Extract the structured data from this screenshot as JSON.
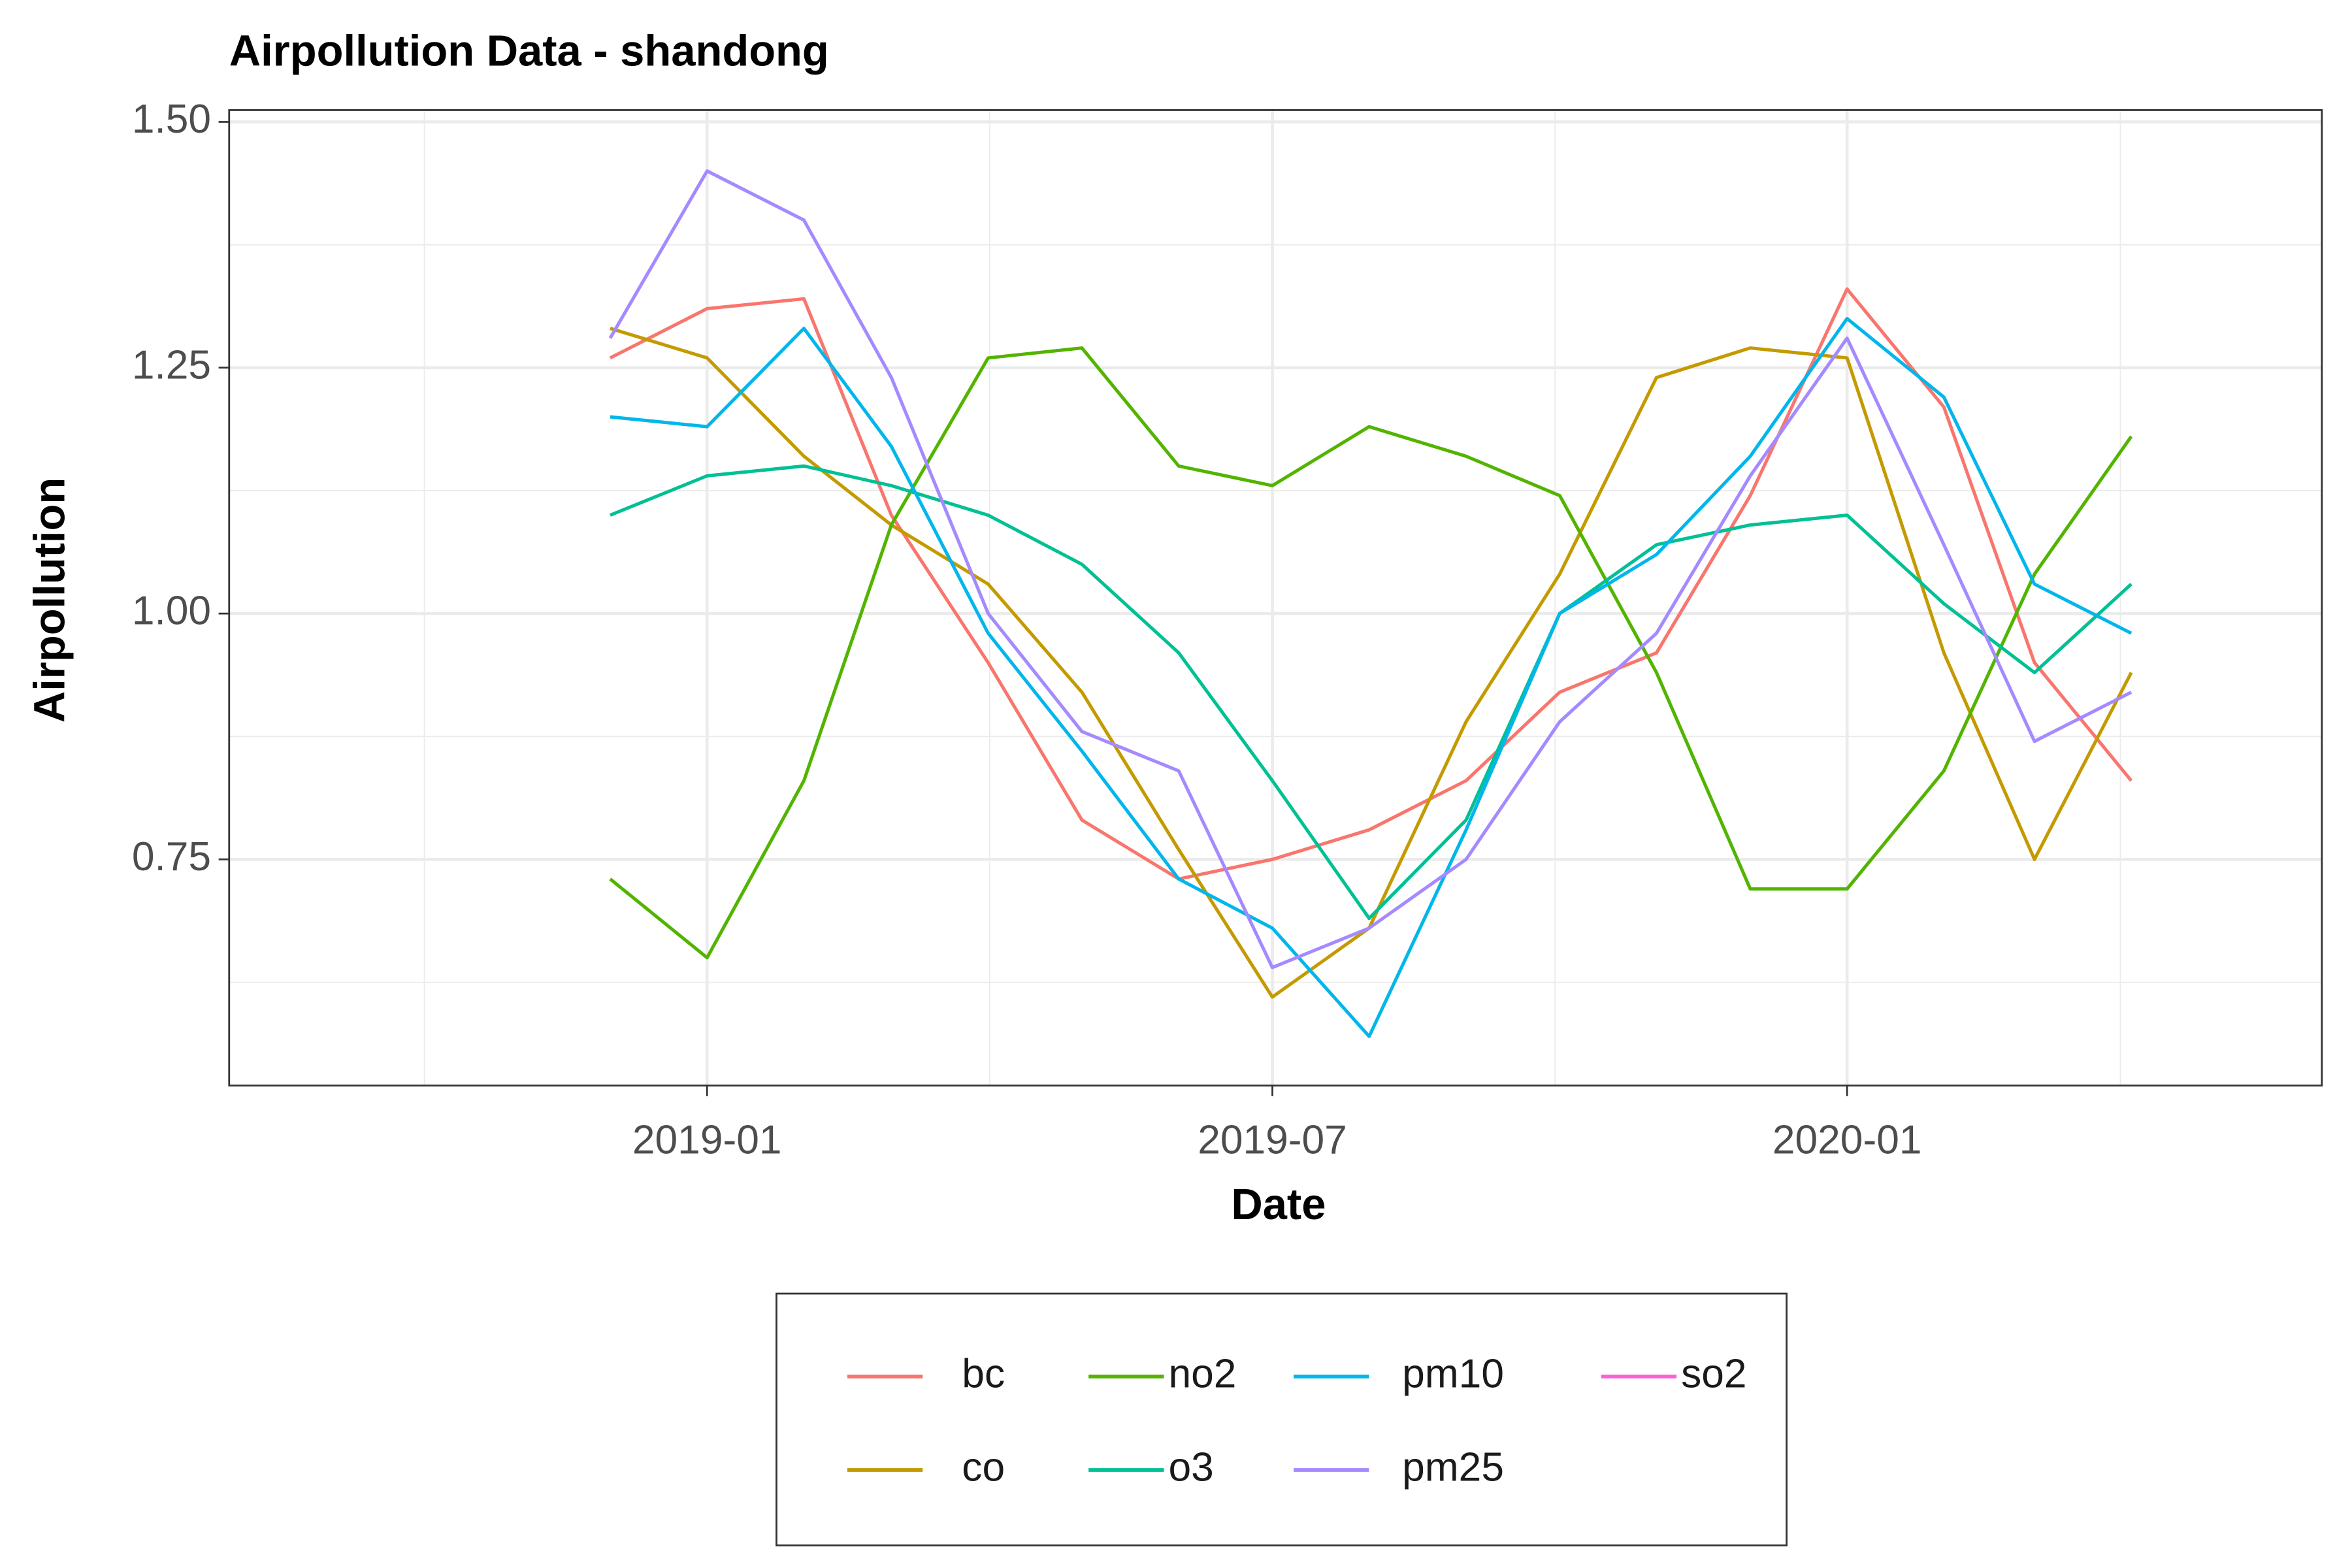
{
  "chart_data": {
    "type": "line",
    "title": "Airpollution Data - shandong",
    "x_label": "Date",
    "y_label": "Airpollution",
    "x": [
      "2018-12",
      "2019-01",
      "2019-02",
      "2019-03",
      "2019-04",
      "2019-05",
      "2019-06",
      "2019-07",
      "2019-08",
      "2019-09",
      "2019-10",
      "2019-11",
      "2019-12",
      "2020-01",
      "2020-02",
      "2020-03",
      "2020-04"
    ],
    "xlim": [
      "2018-08",
      "2020-06"
    ],
    "xticks": [
      "2019-01",
      "2019-07",
      "2020-01"
    ],
    "ylim": [
      0.52,
      1.512
    ],
    "yticks": [
      {
        "value": 0.75,
        "label": "0.75"
      },
      {
        "value": 1,
        "label": "1.00"
      },
      {
        "value": 1.25,
        "label": "1.25"
      },
      {
        "value": 1.5,
        "label": "1.50"
      }
    ],
    "grid": true,
    "legend": "bottom",
    "series": [
      {
        "name": "bc",
        "color": "#F8766D",
        "values": [
          1.26,
          1.31,
          1.32,
          1.1,
          0.95,
          0.79,
          0.73,
          0.75,
          0.78,
          0.83,
          0.92,
          0.96,
          1.12,
          1.33,
          1.21,
          0.95,
          0.83
        ]
      },
      {
        "name": "co",
        "color": "#C49A00",
        "values": [
          1.29,
          1.26,
          1.16,
          1.09,
          1.03,
          0.92,
          0.76,
          0.61,
          0.68,
          0.89,
          1.04,
          1.24,
          1.27,
          1.26,
          0.96,
          0.75,
          0.94
        ]
      },
      {
        "name": "no2",
        "color": "#53B400",
        "values": [
          0.73,
          0.65,
          0.83,
          1.09,
          1.26,
          1.27,
          1.15,
          1.13,
          1.19,
          1.16,
          1.12,
          0.94,
          0.72,
          0.72,
          0.84,
          1.04,
          1.18
        ]
      },
      {
        "name": "o3",
        "color": "#00C094",
        "values": [
          1.1,
          1.14,
          1.15,
          1.13,
          1.1,
          1.05,
          0.96,
          0.83,
          0.69,
          0.79,
          1.0,
          1.07,
          1.09,
          1.1,
          1.01,
          0.94,
          1.03
        ]
      },
      {
        "name": "pm10",
        "color": "#00B6EB",
        "values": [
          1.2,
          1.19,
          1.29,
          1.17,
          0.98,
          0.86,
          0.73,
          0.68,
          0.57,
          0.78,
          1.0,
          1.06,
          1.16,
          1.3,
          1.22,
          1.03,
          0.98
        ]
      },
      {
        "name": "pm25",
        "color": "#A58AFF",
        "values": [
          1.28,
          1.45,
          1.4,
          1.24,
          1.0,
          0.88,
          0.84,
          0.64,
          0.68,
          0.75,
          0.89,
          0.98,
          1.14,
          1.28,
          1.07,
          0.87,
          0.92
        ]
      },
      {
        "name": "so2",
        "color": "#FB61D7",
        "values": [
          null,
          null,
          null,
          null,
          null,
          null,
          null,
          null,
          null,
          null,
          null,
          null,
          null,
          null,
          null,
          null,
          null
        ]
      }
    ]
  }
}
